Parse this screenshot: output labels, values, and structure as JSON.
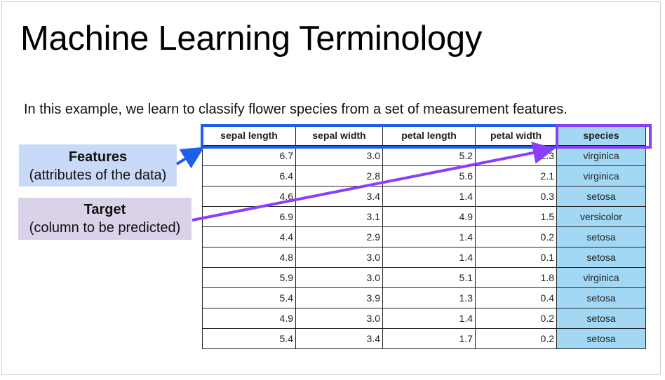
{
  "title": "Machine Learning Terminology",
  "subtitle": "In this example, we learn to classify flower species from a set of measurement features.",
  "callouts": {
    "features": {
      "label": "Features",
      "description": "(attributes of the data)"
    },
    "target": {
      "label": "Target",
      "description": "(column to be predicted)"
    }
  },
  "table": {
    "headers": [
      "sepal length",
      "sepal width",
      "petal length",
      "petal width",
      "species"
    ],
    "rows": [
      [
        "6.7",
        "3.0",
        "5.2",
        "2.3",
        "virginica"
      ],
      [
        "6.4",
        "2.8",
        "5.6",
        "2.1",
        "virginica"
      ],
      [
        "4.6",
        "3.4",
        "1.4",
        "0.3",
        "setosa"
      ],
      [
        "6.9",
        "3.1",
        "4.9",
        "1.5",
        "versicolor"
      ],
      [
        "4.4",
        "2.9",
        "1.4",
        "0.2",
        "setosa"
      ],
      [
        "4.8",
        "3.0",
        "1.4",
        "0.1",
        "setosa"
      ],
      [
        "5.9",
        "3.0",
        "5.1",
        "1.8",
        "virginica"
      ],
      [
        "5.4",
        "3.9",
        "1.3",
        "0.4",
        "setosa"
      ],
      [
        "4.9",
        "3.0",
        "1.4",
        "0.2",
        "setosa"
      ],
      [
        "5.4",
        "3.4",
        "1.7",
        "0.2",
        "setosa"
      ]
    ]
  },
  "colors": {
    "features_box": "#1f5ee8",
    "target_box": "#8a3ffc",
    "features_fill": "#c9daf8",
    "target_fill": "#d9d2e9",
    "species_fill": "#a3d8f4"
  }
}
